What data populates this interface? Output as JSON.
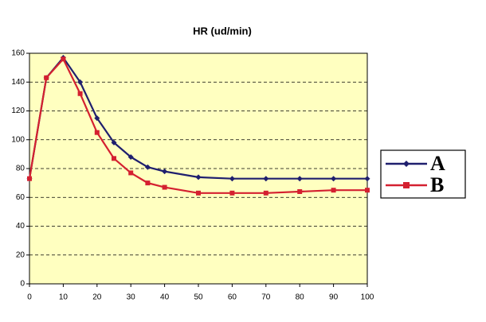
{
  "chart_data": {
    "type": "line",
    "title": "HR (ud/min)",
    "x": [
      0,
      5,
      10,
      15,
      20,
      25,
      30,
      35,
      40,
      50,
      60,
      70,
      80,
      90,
      100
    ],
    "series": [
      {
        "name": "A",
        "color": "#1f1f6e",
        "marker": "diamond",
        "values": [
          73,
          143,
          157,
          140,
          115,
          98,
          88,
          81,
          78,
          74,
          73,
          73,
          73,
          73,
          73
        ]
      },
      {
        "name": "B",
        "color": "#d42030",
        "marker": "square",
        "values": [
          73,
          143,
          156,
          132,
          105,
          87,
          77,
          70,
          67,
          63,
          63,
          63,
          64,
          65,
          65
        ]
      }
    ],
    "xlim": [
      0,
      100
    ],
    "xticks": [
      0,
      10,
      20,
      30,
      40,
      50,
      60,
      70,
      80,
      90,
      100
    ],
    "ylim": [
      0,
      160
    ],
    "yticks": [
      0,
      20,
      40,
      60,
      80,
      100,
      120,
      140,
      160
    ],
    "grid": true,
    "background": "#ffffc0",
    "legend": "right"
  }
}
